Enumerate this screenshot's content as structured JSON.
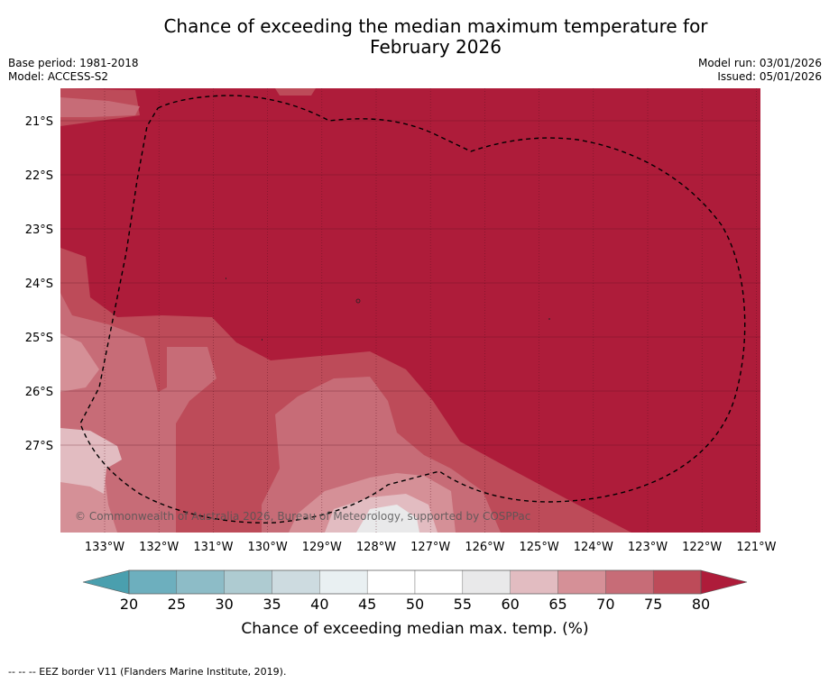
{
  "title_line1": "Chance of exceeding the median maximum temperature for",
  "title_line2": "February 2026",
  "base_period": "Base period: 1981-2018",
  "model": "Model: ACCESS-S2",
  "model_run": "Model run: 03/01/2026",
  "issued": "Issued: 05/01/2026",
  "copyright": "© Commonwealth of Australia 2026, Bureau of Meteorology, supported by COSPPac",
  "lat_labels": [
    "21°S",
    "22°S",
    "23°S",
    "24°S",
    "25°S",
    "26°S",
    "27°S"
  ],
  "lon_labels": [
    "133°W",
    "132°W",
    "131°W",
    "130°W",
    "129°W",
    "128°W",
    "127°W",
    "126°W",
    "125°W",
    "124°W",
    "123°W",
    "122°W",
    "121°W"
  ],
  "colorbar": {
    "label": "Chance of exceeding median max. temp. (%)",
    "ticks": [
      "20",
      "25",
      "30",
      "35",
      "40",
      "45",
      "50",
      "55",
      "60",
      "65",
      "70",
      "75",
      "80"
    ],
    "under_color": "#4a9fae",
    "over_color": "#ae1c3a",
    "bin_colors": [
      "#6dafbe",
      "#8dbcc7",
      "#aecbd1",
      "#cddbe0",
      "#e9f0f2",
      "#ffffff",
      "#ffffff",
      "#e9e9ea",
      "#e2bcc1",
      "#d59097",
      "#c76c77",
      "#bd4b59"
    ]
  },
  "map": {
    "background_color": "#ae1c3a",
    "eez_border": "dashed"
  },
  "footnote": "--  --  -- EEZ border V11 (Flanders Marine Institute, 2019)."
}
